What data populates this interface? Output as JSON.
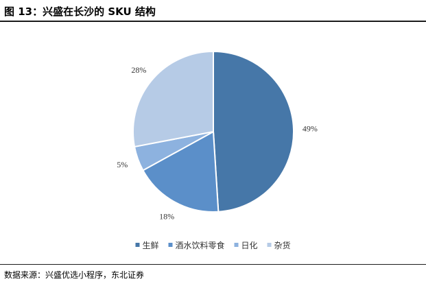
{
  "figure": {
    "title": "图 13：兴盛在长沙的 SKU 结构",
    "source": "数据来源：兴盛优选小程序，东北证券"
  },
  "chart_data": {
    "type": "pie",
    "title": "",
    "categories": [
      "生鲜",
      "酒水饮料零食",
      "日化",
      "杂货"
    ],
    "values": [
      49,
      18,
      5,
      28
    ],
    "value_labels": [
      "49%",
      "18%",
      "5%",
      "28%"
    ],
    "colors": [
      "#4677A8",
      "#5B8FC9",
      "#8DB2DF",
      "#B6CBE6"
    ],
    "start_angle": "12 o'clock",
    "direction": "clockwise",
    "legend": {
      "placement": "bottom",
      "entries": [
        "生鲜",
        "酒水饮料零食",
        "日化",
        "杂货"
      ]
    }
  }
}
